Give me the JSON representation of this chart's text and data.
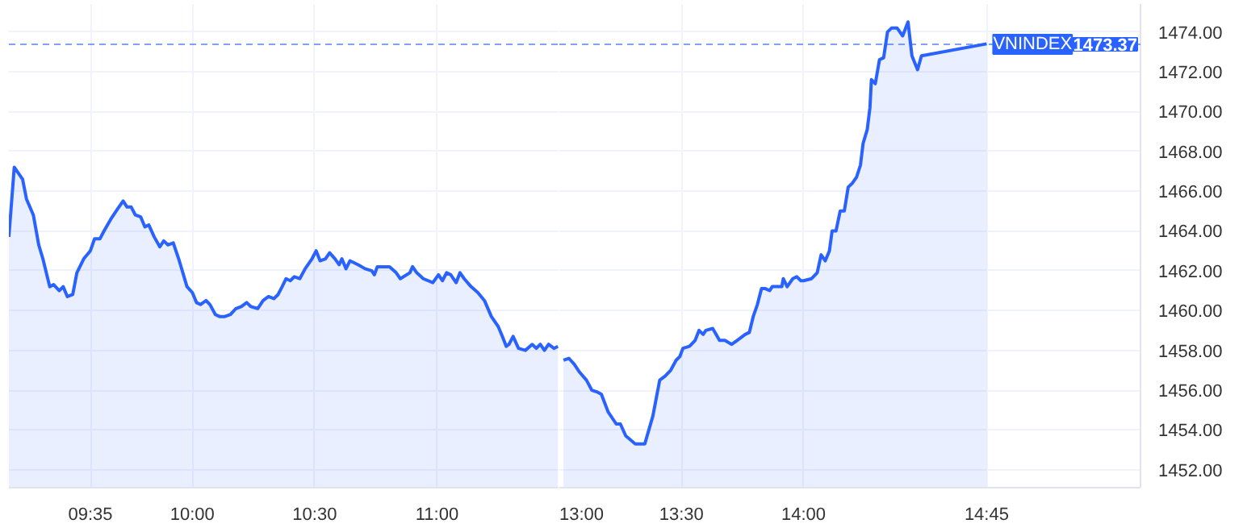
{
  "chart_data": [
    {
      "type": "area",
      "x": [
        9.25,
        9.272,
        9.306,
        9.322,
        9.35,
        9.372,
        9.389,
        9.417,
        9.433,
        9.456,
        9.472,
        9.489,
        9.511,
        9.528,
        9.556,
        9.583,
        9.6,
        9.622,
        9.639,
        9.667,
        9.694,
        9.717,
        9.733,
        9.75,
        9.767,
        9.789,
        9.806,
        9.822,
        9.844,
        9.867,
        9.883,
        9.9,
        9.922,
        9.944,
        9.978,
        10.0,
        10.017,
        10.033,
        10.056,
        10.072,
        10.094,
        10.111,
        10.133,
        10.156,
        10.178,
        10.2,
        10.222,
        10.239,
        10.267,
        10.289,
        10.311,
        10.333,
        10.35,
        10.367,
        10.383,
        10.4,
        10.417,
        10.439,
        10.461,
        10.489,
        10.506,
        10.522,
        10.544,
        10.561,
        10.583,
        10.6,
        10.611,
        10.628,
        10.644,
        10.678,
        10.706,
        10.733,
        10.744,
        10.756,
        10.806,
        10.833,
        10.85,
        10.889,
        10.9,
        10.917,
        10.944,
        10.983,
        11.006,
        11.022,
        11.039,
        11.056,
        11.078,
        11.094,
        11.111,
        11.139,
        11.167,
        11.194,
        11.222,
        11.25,
        11.267,
        11.283,
        11.294,
        11.311,
        11.333,
        11.361,
        11.389,
        11.406,
        11.422,
        11.439,
        11.456,
        11.478,
        11.494
      ],
      "series": [
        {
          "color": "#2962ff",
          "values": [
            1463.7,
            1467.2,
            1466.6,
            1465.6,
            1464.8,
            1463.3,
            1462.6,
            1461.2,
            1461.3,
            1461.0,
            1461.2,
            1460.7,
            1460.8,
            1461.9,
            1462.6,
            1463.0,
            1463.6,
            1463.6,
            1464.0,
            1464.6,
            1465.1,
            1465.5,
            1465.2,
            1465.2,
            1464.8,
            1464.7,
            1464.2,
            1464.3,
            1463.7,
            1463.2,
            1463.5,
            1463.3,
            1463.4,
            1462.6,
            1461.2,
            1460.9,
            1460.4,
            1460.3,
            1460.5,
            1460.3,
            1459.8,
            1459.7,
            1459.7,
            1459.8,
            1460.1,
            1460.2,
            1460.4,
            1460.2,
            1460.1,
            1460.5,
            1460.7,
            1460.6,
            1460.8,
            1461.2,
            1461.6,
            1461.5,
            1461.7,
            1461.6,
            1462.1,
            1462.6,
            1463.0,
            1462.5,
            1462.6,
            1462.9,
            1462.6,
            1462.3,
            1462.6,
            1462.1,
            1462.5,
            1462.3,
            1462.1,
            1462.0,
            1461.8,
            1462.2,
            1462.2,
            1461.9,
            1461.6,
            1461.9,
            1462.2,
            1461.9,
            1461.6,
            1461.4,
            1461.8,
            1461.5,
            1461.9,
            1461.8,
            1461.4,
            1461.9,
            1461.6,
            1461.2,
            1460.9,
            1460.5,
            1459.7,
            1459.2,
            1458.7,
            1458.2,
            1458.3,
            1458.7,
            1458.1,
            1458.0,
            1458.3,
            1458.1,
            1458.3,
            1458.0,
            1458.3,
            1458.1,
            1458.2
          ]
        }
      ],
      "xlim": [
        9.25,
        11.5
      ],
      "xticks": [
        {
          "value": 9.5833,
          "label": "09:35"
        },
        {
          "value": 10,
          "label": "10:00"
        },
        {
          "value": 10.5,
          "label": "10:30"
        },
        {
          "value": 11,
          "label": "11:00"
        }
      ],
      "ylim": [
        1451.1,
        1475.4
      ],
      "yticks": [
        1452,
        1454,
        1456,
        1458,
        1460,
        1462,
        1464,
        1466,
        1468,
        1470,
        1472,
        1474
      ],
      "tick_labels": "x",
      "ref_lines": [
        {
          "axis": "y",
          "value": 1473.37,
          "color": "#2962ff",
          "line_style": "dashed"
        }
      ],
      "grid": true
    },
    {
      "type": "area",
      "x": [
        13.017,
        13.039,
        13.061,
        13.083,
        13.111,
        13.133,
        13.156,
        13.172,
        13.2,
        13.233,
        13.25,
        13.272,
        13.311,
        13.333,
        13.35,
        13.383,
        13.411,
        13.433,
        13.456,
        13.478,
        13.494,
        13.506,
        13.533,
        13.556,
        13.572,
        13.589,
        13.6,
        13.628,
        13.656,
        13.678,
        13.706,
        13.728,
        13.761,
        13.778,
        13.794,
        13.811,
        13.828,
        13.844,
        13.861,
        13.872,
        13.911,
        13.917,
        13.933,
        13.956,
        13.972,
        13.989,
        14.0,
        14.033,
        14.056,
        14.072,
        14.089,
        14.106,
        14.117,
        14.133,
        14.15,
        14.167,
        14.183,
        14.2,
        14.217,
        14.233,
        14.244,
        14.261,
        14.272,
        14.278,
        14.294,
        14.311,
        14.328,
        14.344,
        14.361,
        14.383,
        14.406,
        14.428,
        14.444,
        14.467,
        14.483,
        14.75
      ],
      "series": [
        {
          "name": "VNINDEX",
          "color": "#2962ff",
          "values": [
            1457.5,
            1457.6,
            1457.3,
            1456.9,
            1456.5,
            1456.0,
            1455.9,
            1455.8,
            1454.9,
            1454.3,
            1454.3,
            1453.7,
            1453.3,
            1453.3,
            1453.3,
            1454.7,
            1456.5,
            1456.7,
            1457.0,
            1457.5,
            1457.7,
            1458.1,
            1458.2,
            1458.5,
            1459.0,
            1458.8,
            1459.0,
            1459.1,
            1458.5,
            1458.5,
            1458.3,
            1458.5,
            1458.8,
            1458.9,
            1459.7,
            1460.3,
            1461.1,
            1461.1,
            1461.0,
            1461.2,
            1461.2,
            1461.6,
            1461.2,
            1461.6,
            1461.7,
            1461.5,
            1461.5,
            1461.6,
            1461.9,
            1462.8,
            1462.5,
            1463.0,
            1464.0,
            1464.0,
            1465.0,
            1465.0,
            1466.2,
            1466.4,
            1466.7,
            1467.3,
            1468.4,
            1469.1,
            1470.2,
            1471.6,
            1471.4,
            1472.6,
            1472.7,
            1474.0,
            1474.2,
            1474.2,
            1473.8,
            1474.5,
            1472.8,
            1472.1,
            1472.8,
            1473.4
          ]
        }
      ],
      "xlim": [
        13.0,
        15.38
      ],
      "xticks": [
        {
          "value": 13,
          "label": "13:00"
        },
        {
          "value": 13.5,
          "label": "13:30"
        },
        {
          "value": 14,
          "label": "14:00"
        },
        {
          "value": 14.75,
          "label": "14:45"
        }
      ],
      "ylim": [
        1451.1,
        1475.4
      ],
      "yticks": [
        {
          "value": 1452,
          "label": "1452.00"
        },
        {
          "value": 1454,
          "label": "1454.00"
        },
        {
          "value": 1456,
          "label": "1456.00"
        },
        {
          "value": 1458,
          "label": "1458.00"
        },
        {
          "value": 1460,
          "label": "1460.00"
        },
        {
          "value": 1462,
          "label": "1462.00"
        },
        {
          "value": 1464,
          "label": "1464.00"
        },
        {
          "value": 1466,
          "label": "1466.00"
        },
        {
          "value": 1468,
          "label": "1468.00"
        },
        {
          "value": 1470,
          "label": "1470.00"
        },
        {
          "value": 1472,
          "label": "1472.00"
        },
        {
          "value": 1474,
          "label": "1474.00"
        }
      ],
      "ref_lines": [
        {
          "axis": "y",
          "value": 1473.37,
          "label": "1473.37",
          "color": "#2962ff",
          "line_style": "dashed"
        }
      ],
      "grid": true
    }
  ]
}
